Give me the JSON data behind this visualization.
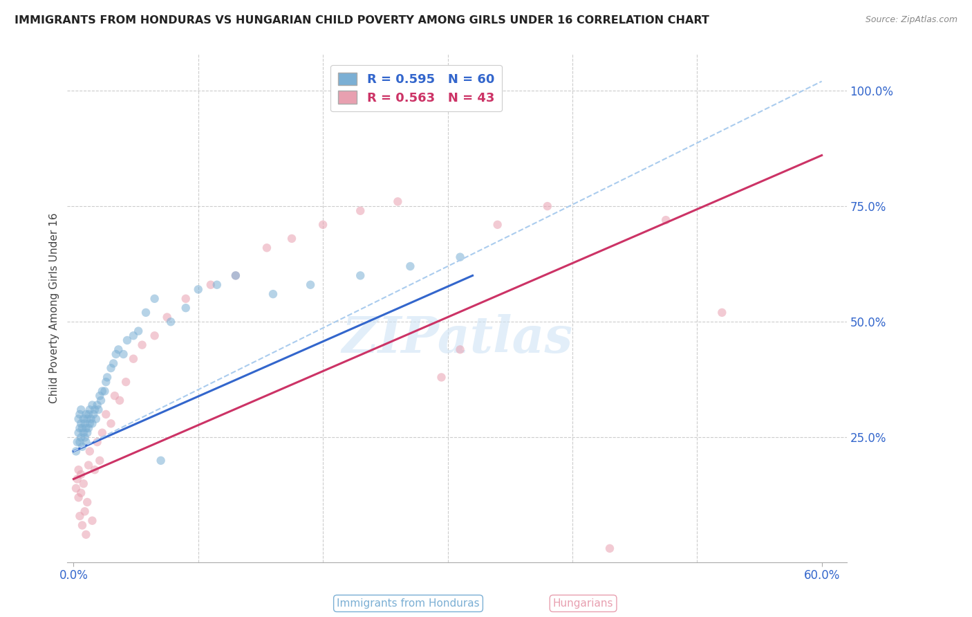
{
  "title": "IMMIGRANTS FROM HONDURAS VS HUNGARIAN CHILD POVERTY AMONG GIRLS UNDER 16 CORRELATION CHART",
  "source": "Source: ZipAtlas.com",
  "xlabel_blue": "Immigrants from Honduras",
  "xlabel_pink": "Hungarians",
  "ylabel": "Child Poverty Among Girls Under 16",
  "xlim": [
    -0.005,
    0.62
  ],
  "ylim": [
    -0.02,
    1.08
  ],
  "yticks_right": [
    0.25,
    0.5,
    0.75,
    1.0
  ],
  "ytick_labels_right": [
    "25.0%",
    "50.0%",
    "75.0%",
    "100.0%"
  ],
  "blue_R": 0.595,
  "blue_N": 60,
  "pink_R": 0.563,
  "pink_N": 43,
  "blue_color": "#7bafd4",
  "pink_color": "#e8a0b0",
  "blue_line_color": "#3366cc",
  "pink_line_color": "#cc3366",
  "dashed_line_color": "#aaccee",
  "legend_R_color": "#3366cc",
  "legend_pink_color": "#cc3366",
  "grid_color": "#cccccc",
  "title_color": "#222222",
  "axis_label_color": "#444444",
  "right_axis_color": "#3366cc",
  "bottom_label_color": "#3366cc",
  "blue_scatter_x": [
    0.002,
    0.003,
    0.004,
    0.004,
    0.005,
    0.005,
    0.005,
    0.006,
    0.006,
    0.006,
    0.007,
    0.007,
    0.008,
    0.008,
    0.009,
    0.009,
    0.01,
    0.01,
    0.01,
    0.011,
    0.011,
    0.012,
    0.012,
    0.013,
    0.013,
    0.014,
    0.015,
    0.015,
    0.016,
    0.017,
    0.018,
    0.019,
    0.02,
    0.021,
    0.022,
    0.023,
    0.025,
    0.026,
    0.027,
    0.03,
    0.032,
    0.034,
    0.036,
    0.04,
    0.043,
    0.048,
    0.052,
    0.058,
    0.065,
    0.07,
    0.078,
    0.09,
    0.1,
    0.115,
    0.13,
    0.16,
    0.19,
    0.23,
    0.27,
    0.31
  ],
  "blue_scatter_y": [
    0.22,
    0.24,
    0.26,
    0.29,
    0.24,
    0.27,
    0.3,
    0.25,
    0.28,
    0.31,
    0.23,
    0.27,
    0.26,
    0.29,
    0.25,
    0.28,
    0.24,
    0.27,
    0.3,
    0.26,
    0.29,
    0.27,
    0.3,
    0.28,
    0.31,
    0.29,
    0.28,
    0.32,
    0.3,
    0.31,
    0.29,
    0.32,
    0.31,
    0.34,
    0.33,
    0.35,
    0.35,
    0.37,
    0.38,
    0.4,
    0.41,
    0.43,
    0.44,
    0.43,
    0.46,
    0.47,
    0.48,
    0.52,
    0.55,
    0.2,
    0.5,
    0.53,
    0.57,
    0.58,
    0.6,
    0.56,
    0.58,
    0.6,
    0.62,
    0.64
  ],
  "pink_scatter_x": [
    0.002,
    0.003,
    0.004,
    0.004,
    0.005,
    0.006,
    0.006,
    0.007,
    0.008,
    0.009,
    0.01,
    0.011,
    0.012,
    0.013,
    0.015,
    0.017,
    0.019,
    0.021,
    0.023,
    0.026,
    0.03,
    0.033,
    0.037,
    0.042,
    0.048,
    0.055,
    0.065,
    0.075,
    0.09,
    0.11,
    0.13,
    0.155,
    0.175,
    0.2,
    0.23,
    0.26,
    0.295,
    0.34,
    0.38,
    0.43,
    0.475,
    0.52,
    0.31
  ],
  "pink_scatter_y": [
    0.14,
    0.16,
    0.12,
    0.18,
    0.08,
    0.13,
    0.17,
    0.06,
    0.15,
    0.09,
    0.04,
    0.11,
    0.19,
    0.22,
    0.07,
    0.18,
    0.24,
    0.2,
    0.26,
    0.3,
    0.28,
    0.34,
    0.33,
    0.37,
    0.42,
    0.45,
    0.47,
    0.51,
    0.55,
    0.58,
    0.6,
    0.66,
    0.68,
    0.71,
    0.74,
    0.76,
    0.38,
    0.71,
    0.75,
    0.01,
    0.72,
    0.52,
    0.44
  ],
  "blue_trend_x": [
    0.0,
    0.32
  ],
  "blue_trend_y": [
    0.22,
    0.6
  ],
  "pink_trend_x": [
    0.0,
    0.6
  ],
  "pink_trend_y": [
    0.16,
    0.86
  ],
  "dashed_trend_x": [
    0.0,
    0.6
  ],
  "dashed_trend_y": [
    0.22,
    1.02
  ],
  "marker_size": 80,
  "marker_alpha": 0.55,
  "line_width": 2.2,
  "watermark_text": "ZIPatlas",
  "watermark_color": "#d0e4f5",
  "watermark_alpha": 0.6
}
